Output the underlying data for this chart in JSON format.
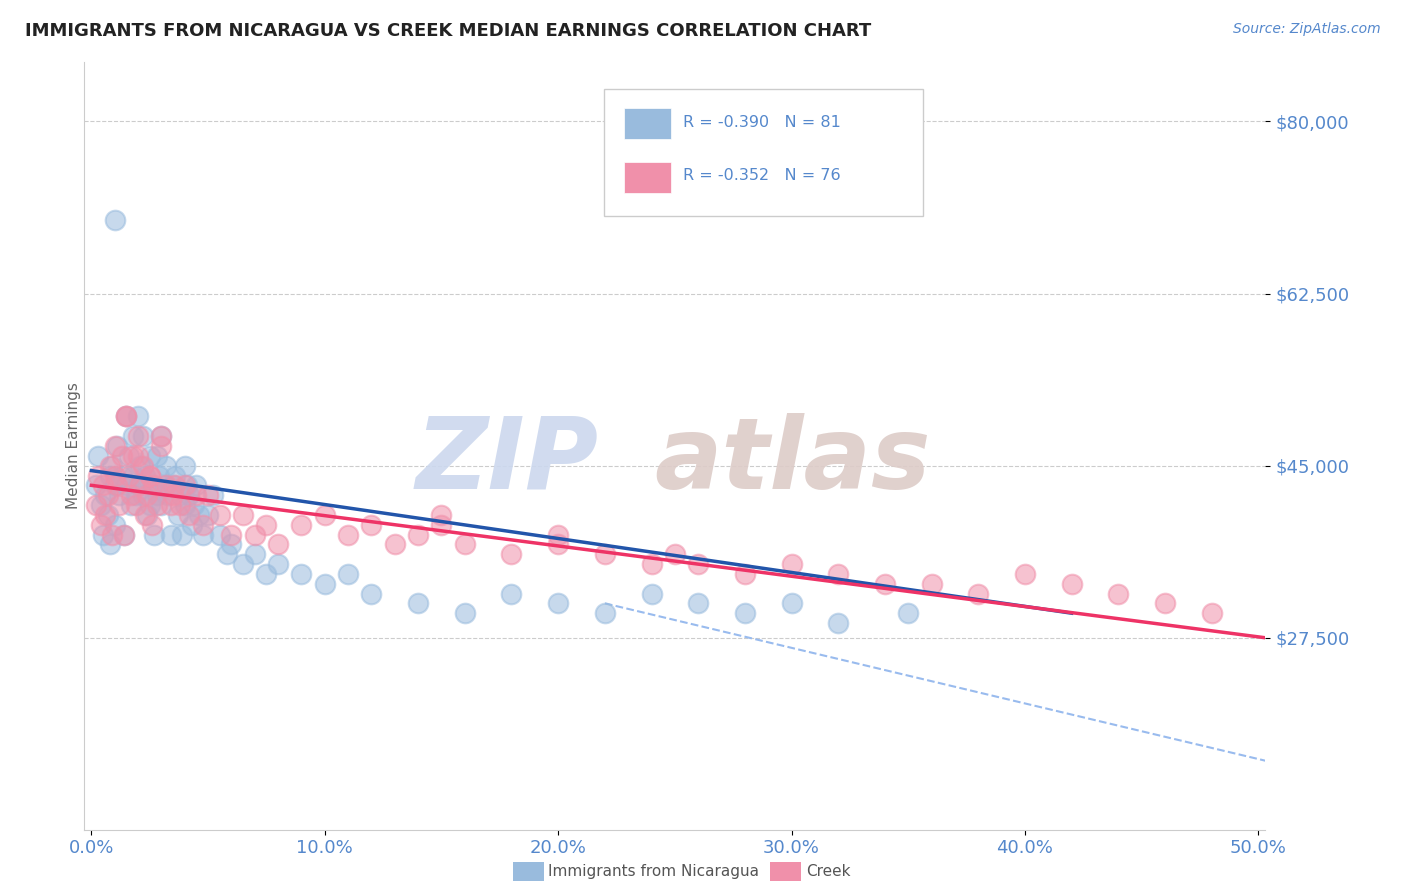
{
  "title": "IMMIGRANTS FROM NICARAGUA VS CREEK MEDIAN EARNINGS CORRELATION CHART",
  "source": "Source: ZipAtlas.com",
  "ylabel": "Median Earnings",
  "xlim": [
    -0.003,
    0.503
  ],
  "ylim": [
    8000,
    86000
  ],
  "yticks": [
    27500,
    45000,
    62500,
    80000
  ],
  "ytick_labels": [
    "$27,500",
    "$45,000",
    "$62,500",
    "$80,000"
  ],
  "xticks": [
    0.0,
    0.1,
    0.2,
    0.3,
    0.4,
    0.5
  ],
  "xtick_labels": [
    "0.0%",
    "10.0%",
    "20.0%",
    "30.0%",
    "40.0%",
    "50.0%"
  ],
  "blue_color": "#99bbdd",
  "pink_color": "#f090aa",
  "blue_line_color": "#2255aa",
  "pink_line_color": "#ee3366",
  "dashed_line_color": "#99bbee",
  "legend_blue_label": "R = -0.390   N = 81",
  "legend_pink_label": "R = -0.352   N = 76",
  "legend_bottom_blue": "Immigrants from Nicaragua",
  "legend_bottom_pink": "Creek",
  "title_color": "#222222",
  "axis_color": "#5588cc",
  "watermark_zip_color": "#ccd8ee",
  "watermark_atlas_color": "#ddccc8",
  "background_color": "#ffffff",
  "grid_color": "#cccccc",
  "blue_scatter_x": [
    0.002,
    0.003,
    0.004,
    0.005,
    0.006,
    0.007,
    0.008,
    0.008,
    0.009,
    0.01,
    0.01,
    0.011,
    0.012,
    0.013,
    0.014,
    0.015,
    0.015,
    0.016,
    0.017,
    0.018,
    0.018,
    0.019,
    0.02,
    0.02,
    0.021,
    0.022,
    0.022,
    0.023,
    0.024,
    0.025,
    0.025,
    0.026,
    0.027,
    0.028,
    0.028,
    0.029,
    0.03,
    0.03,
    0.031,
    0.032,
    0.033,
    0.034,
    0.035,
    0.036,
    0.037,
    0.038,
    0.039,
    0.04,
    0.04,
    0.041,
    0.042,
    0.043,
    0.044,
    0.045,
    0.046,
    0.048,
    0.05,
    0.052,
    0.055,
    0.058,
    0.06,
    0.065,
    0.07,
    0.075,
    0.08,
    0.09,
    0.1,
    0.11,
    0.12,
    0.14,
    0.16,
    0.18,
    0.2,
    0.22,
    0.24,
    0.26,
    0.28,
    0.3,
    0.32,
    0.35,
    0.01
  ],
  "blue_scatter_y": [
    43000,
    46000,
    41000,
    38000,
    42000,
    40000,
    44000,
    37000,
    45000,
    43000,
    39000,
    47000,
    42000,
    44000,
    38000,
    50000,
    43000,
    46000,
    41000,
    48000,
    44000,
    42000,
    50000,
    43000,
    45000,
    48000,
    42000,
    44000,
    40000,
    46000,
    41000,
    43000,
    38000,
    46000,
    42000,
    44000,
    48000,
    41000,
    43000,
    45000,
    42000,
    38000,
    43000,
    44000,
    40000,
    42000,
    38000,
    45000,
    41000,
    43000,
    42000,
    39000,
    41000,
    43000,
    40000,
    38000,
    40000,
    42000,
    38000,
    36000,
    37000,
    35000,
    36000,
    34000,
    35000,
    34000,
    33000,
    34000,
    32000,
    31000,
    30000,
    32000,
    31000,
    30000,
    32000,
    31000,
    30000,
    31000,
    29000,
    30000,
    70000
  ],
  "pink_scatter_x": [
    0.002,
    0.003,
    0.004,
    0.005,
    0.006,
    0.007,
    0.008,
    0.009,
    0.01,
    0.011,
    0.012,
    0.013,
    0.014,
    0.015,
    0.016,
    0.017,
    0.018,
    0.019,
    0.02,
    0.021,
    0.022,
    0.023,
    0.024,
    0.025,
    0.026,
    0.027,
    0.028,
    0.03,
    0.032,
    0.034,
    0.036,
    0.038,
    0.04,
    0.042,
    0.045,
    0.048,
    0.05,
    0.055,
    0.06,
    0.065,
    0.07,
    0.075,
    0.08,
    0.09,
    0.1,
    0.11,
    0.12,
    0.13,
    0.14,
    0.15,
    0.16,
    0.18,
    0.2,
    0.22,
    0.24,
    0.26,
    0.28,
    0.3,
    0.32,
    0.34,
    0.36,
    0.38,
    0.4,
    0.42,
    0.44,
    0.46,
    0.48,
    0.2,
    0.25,
    0.15,
    0.01,
    0.015,
    0.02,
    0.025,
    0.03,
    0.035
  ],
  "pink_scatter_y": [
    41000,
    44000,
    39000,
    43000,
    40000,
    42000,
    45000,
    38000,
    47000,
    43000,
    41000,
    46000,
    38000,
    50000,
    44000,
    42000,
    46000,
    41000,
    48000,
    43000,
    45000,
    40000,
    42000,
    44000,
    39000,
    43000,
    41000,
    47000,
    43000,
    41000,
    43000,
    41000,
    43000,
    40000,
    42000,
    39000,
    42000,
    40000,
    38000,
    40000,
    38000,
    39000,
    37000,
    39000,
    40000,
    38000,
    39000,
    37000,
    38000,
    39000,
    37000,
    36000,
    37000,
    36000,
    35000,
    35000,
    34000,
    35000,
    34000,
    33000,
    33000,
    32000,
    34000,
    33000,
    32000,
    31000,
    30000,
    38000,
    36000,
    40000,
    44000,
    50000,
    46000,
    44000,
    48000,
    42000
  ],
  "blue_trendline_x": [
    0.0,
    0.42
  ],
  "blue_trendline_y": [
    44500,
    30000
  ],
  "pink_trendline_x": [
    0.0,
    0.503
  ],
  "pink_trendline_y": [
    43000,
    27500
  ],
  "dashed_trendline_x": [
    0.22,
    0.503
  ],
  "dashed_trendline_y": [
    31000,
    15000
  ]
}
